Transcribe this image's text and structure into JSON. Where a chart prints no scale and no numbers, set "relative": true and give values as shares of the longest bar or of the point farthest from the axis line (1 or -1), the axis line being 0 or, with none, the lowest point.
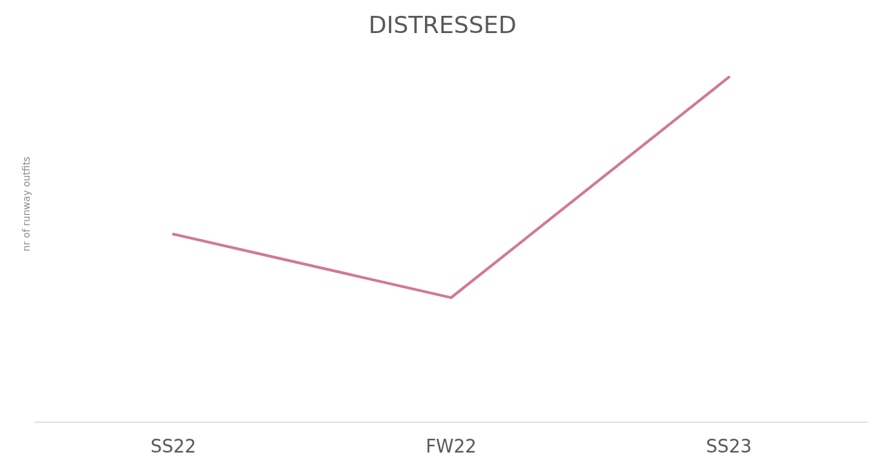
{
  "chart_data": {
    "type": "line",
    "title": "DISTRESSED",
    "ylabel": "nr of runway outfits",
    "categories": [
      "SS22",
      "FW22",
      "SS23"
    ],
    "series": [
      {
        "color": "#d07a8f",
        "values": [
          0.545,
          0.361,
          1
        ]
      }
    ],
    "relative": true,
    "grid": false,
    "marker": "none",
    "line_style": "solid"
  }
}
